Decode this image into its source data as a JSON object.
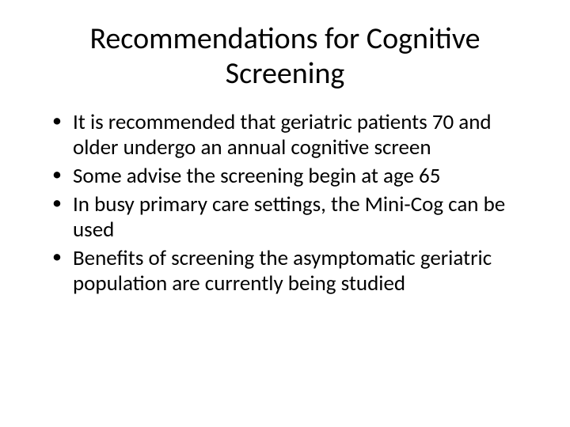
{
  "slide": {
    "title": "Recommendations for Cognitive Screening",
    "bullets": [
      "It is recommended that geriatric patients 70 and older undergo an annual cognitive screen",
      "Some advise the screening begin at age 65",
      "In busy primary care settings, the Mini-Cog can be used",
      "Benefits of screening the asymptomatic geriatric population are currently being studied"
    ],
    "colors": {
      "background": "#ffffff",
      "text": "#000000"
    },
    "typography": {
      "title_fontsize_pt": 38,
      "body_fontsize_pt": 27,
      "font_family": "Calibri"
    }
  }
}
